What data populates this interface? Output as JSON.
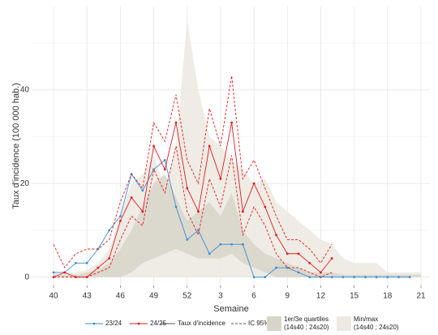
{
  "chart_data": {
    "type": "line",
    "x_label": "Semaine",
    "y_label": "Taux d'incidence (100 000 hab.)",
    "categories": [
      "40",
      null,
      null,
      "43",
      null,
      null,
      "46",
      null,
      null,
      "49",
      null,
      null,
      "52",
      null,
      null,
      "3",
      null,
      null,
      "6",
      null,
      null,
      "9",
      null,
      null,
      "12",
      null,
      null,
      "15",
      null,
      null,
      "18",
      null,
      null,
      "21"
    ],
    "ylim": [
      -1.8,
      56.6
    ],
    "yticks": [
      0,
      20,
      40
    ],
    "minor_yticks": [
      10,
      30,
      50
    ],
    "grid": true,
    "series": [
      {
        "name": "23/24",
        "color": "#3b8fd1",
        "values": [
          1,
          1,
          3,
          3,
          6,
          10,
          13,
          22,
          18.5,
          23,
          25,
          15,
          8,
          10,
          5,
          7,
          7,
          7,
          0,
          0,
          2,
          2,
          1,
          0,
          0,
          0,
          0,
          0,
          0,
          0,
          0,
          0,
          0,
          null
        ]
      },
      {
        "name": "24/25",
        "color": "#e31a1c",
        "values": [
          0,
          1,
          0,
          0,
          2,
          4,
          12,
          17,
          14,
          28,
          23,
          33,
          19,
          14,
          28,
          21,
          33,
          14,
          20,
          15,
          9,
          5,
          5,
          3,
          1,
          4,
          null,
          null,
          null,
          null,
          null,
          null,
          null,
          null
        ],
        "ci_upper": [
          7,
          2,
          5,
          6,
          6,
          8,
          16,
          22,
          19,
          33,
          29,
          39,
          25,
          20,
          36,
          28,
          43,
          21,
          25,
          19,
          13,
          8,
          8,
          6,
          3,
          7,
          null,
          null,
          null,
          null,
          null,
          null,
          null,
          null
        ],
        "ci_lower": [
          0,
          0,
          0,
          0,
          1,
          2,
          8,
          13,
          11,
          23,
          18,
          28,
          14,
          9,
          21,
          15,
          26,
          9,
          15,
          11,
          5,
          2,
          2,
          1,
          0,
          1,
          null,
          null,
          null,
          null,
          null,
          null,
          null,
          null
        ]
      }
    ],
    "line_legend": [
      {
        "name": "Taux d'incidence",
        "dashed": false
      },
      {
        "name": "IC 95%",
        "dashed": true
      }
    ],
    "bands": [
      {
        "label": [
          "Min/max",
          "(14s40 ; 24s20)"
        ],
        "color": "#ebe9e1",
        "upper": [
          1,
          1,
          1,
          1.5,
          3,
          6,
          13,
          20,
          22,
          26,
          19,
          28,
          55,
          40,
          30,
          28,
          25,
          23,
          20,
          21,
          16,
          14,
          12,
          10,
          8,
          7,
          4,
          3,
          3,
          3,
          1,
          1,
          1,
          1
        ],
        "lower": [
          0,
          0,
          0,
          0,
          0,
          0,
          0,
          0,
          0,
          0,
          0,
          0,
          0,
          0,
          0,
          0,
          0,
          0,
          0,
          0,
          0,
          0,
          0,
          0,
          0,
          0,
          0,
          0,
          0,
          0,
          0,
          0,
          0,
          0
        ]
      },
      {
        "label": [
          "1er/3e quartiles",
          "(14s40 ; 24s20)"
        ],
        "color": "#d7d5ca",
        "upper": [
          0.5,
          0.5,
          0.5,
          1,
          1.5,
          3,
          6,
          10,
          15,
          20,
          22,
          17,
          12,
          14,
          16,
          13,
          18,
          10,
          7,
          5,
          4,
          3,
          2,
          1,
          1,
          1,
          0.5,
          0.5,
          0.5,
          0.5,
          0.5,
          0.5,
          0.5,
          0.5
        ],
        "lower": [
          0,
          0,
          0,
          0,
          0,
          0,
          0,
          1,
          3,
          4,
          5,
          6,
          5,
          4,
          4,
          4,
          5,
          3,
          2,
          1,
          0,
          0,
          0,
          0,
          0,
          0,
          0,
          0,
          0,
          0,
          0,
          0,
          0,
          0
        ]
      }
    ]
  }
}
